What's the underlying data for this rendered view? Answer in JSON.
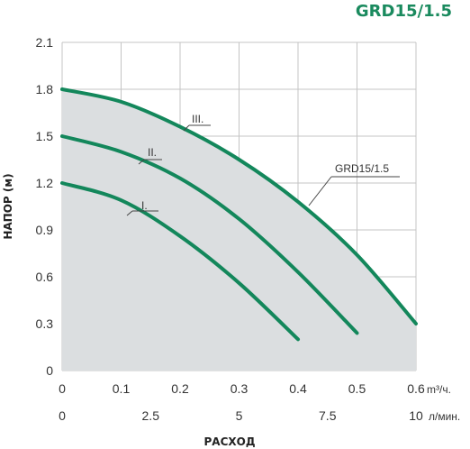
{
  "chart_data": {
    "type": "line",
    "title": "GRD15/1.5",
    "ylabel": "НАПОР (м)",
    "xlabel": "РАСХОД",
    "x_unit_primary": "m³/ч.",
    "x_unit_secondary": "л/мин.",
    "xlim": [
      0,
      0.6
    ],
    "ylim": [
      0,
      2.1
    ],
    "y_ticks": [
      "0",
      "0.3",
      "0.6",
      "0.9",
      "1.2",
      "1.5",
      "1.8",
      "2.1"
    ],
    "x_ticks_primary": [
      "0",
      "0.1",
      "0.2",
      "0.3",
      "0.4",
      "0.5",
      "0.6"
    ],
    "x_ticks_secondary": [
      "0",
      "2.5",
      "5",
      "7.5",
      "10"
    ],
    "series": [
      {
        "name": "I.",
        "x": [
          0,
          0.1,
          0.2,
          0.3,
          0.4
        ],
        "y": [
          1.2,
          1.09,
          0.86,
          0.56,
          0.2
        ]
      },
      {
        "name": "II.",
        "x": [
          0,
          0.1,
          0.2,
          0.3,
          0.4,
          0.5
        ],
        "y": [
          1.5,
          1.4,
          1.23,
          0.97,
          0.63,
          0.24
        ]
      },
      {
        "name": "III.",
        "x": [
          0,
          0.1,
          0.2,
          0.3,
          0.4,
          0.5,
          0.6
        ],
        "y": [
          1.8,
          1.72,
          1.56,
          1.35,
          1.08,
          0.74,
          0.3
        ]
      }
    ],
    "curve_label": "GRD15/1.5",
    "grid": true,
    "colors": {
      "curve": "#13875b",
      "fill": "#dbdee0",
      "grid": "#c4c4c4",
      "title": "#1a8a5e"
    }
  }
}
